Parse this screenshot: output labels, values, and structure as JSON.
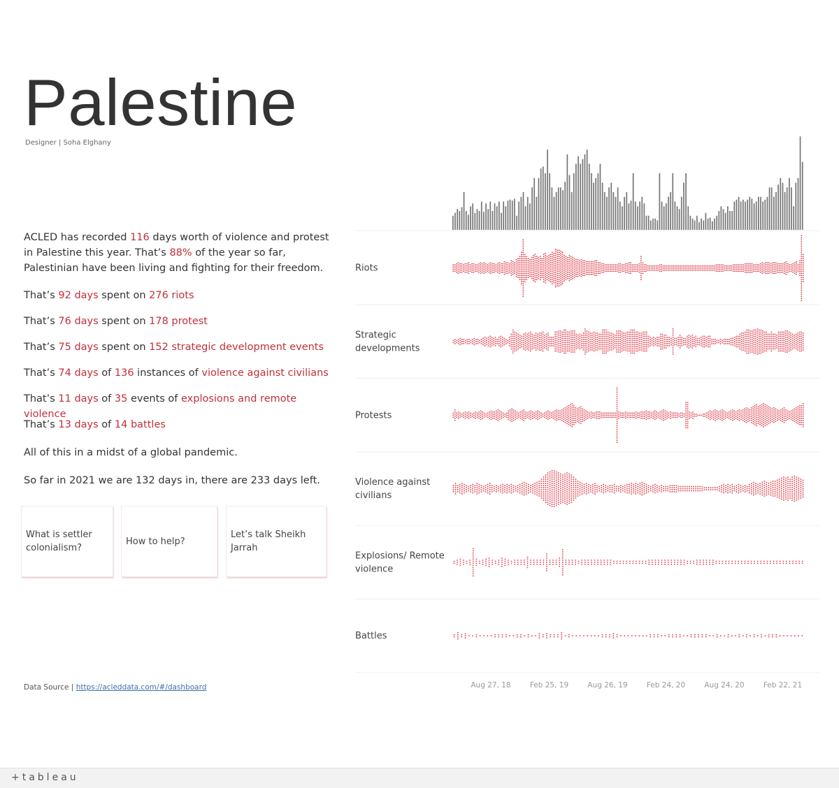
{
  "title": "Palestine",
  "designer": "Designer | Soha Elghany",
  "intro": {
    "p1": "ACLED has recorded ",
    "days_total": "116",
    "p2": " days worth of violence and protest in Palestine this year. That’s ",
    "percent": "88%",
    "p3": " of the year so far, Palestinian have been living and fighting for their freedom."
  },
  "stats": [
    {
      "a": "That’s ",
      "days": "92 days",
      "b": " spent on ",
      "count": "276 riots",
      "c": "",
      "kind": ""
    },
    {
      "a": "That’s ",
      "days": "76 days",
      "b": " spent on ",
      "count": "178 protest",
      "c": "",
      "kind": ""
    },
    {
      "a": "That’s ",
      "days": "75 days",
      "b": " spent on ",
      "count": "152 strategic development events",
      "c": "",
      "kind": ""
    },
    {
      "a": "That’s ",
      "days": "74 days",
      "b": " of ",
      "count": "136",
      "c": " instances of ",
      "kind": "violence against civilians"
    },
    {
      "a": "That’s ",
      "days": "11 days",
      "b": " of ",
      "count": "35",
      "c": " events of ",
      "kind": "explosions and remote violence"
    },
    {
      "a": "That’s ",
      "days": "13 days",
      "b": " of ",
      "count": "14 battles",
      "c": "",
      "kind": ""
    }
  ],
  "pandemic": "All of this in a midst of a global pandemic.",
  "sofar": {
    "a": "So far in 2021 we are ",
    "days_in": "132",
    "b": " days in, there are ",
    "days_left": "233",
    "c": " days left."
  },
  "cards": [
    "What is settler colonialism?",
    "How to help?",
    "Let’s talk Sheikh Jarrah"
  ],
  "source": {
    "label": "Data Source | ",
    "link": "https://acleddata.com/#/dashboard"
  },
  "brand": "+tableau",
  "colors": {
    "accent": "#c0303a",
    "dots": "#e0525e",
    "bars": "#777777"
  },
  "chart_data": {
    "type": "bar",
    "x_ticks": [
      "Aug 27, 18",
      "Feb 25, 19",
      "Aug 26, 19",
      "Feb 24, 20",
      "Aug 24, 20",
      "Feb 22, 21"
    ],
    "rows": [
      {
        "label": "Riots",
        "width": [
          4,
          4,
          5,
          6,
          5,
          5,
          4,
          5,
          5,
          6,
          4,
          5,
          5,
          4,
          4,
          5,
          6,
          5,
          6,
          5,
          4,
          5,
          6,
          5,
          5,
          4,
          5,
          6,
          5,
          5,
          7,
          6,
          6,
          5,
          8,
          7,
          6,
          9,
          10,
          12,
          16,
          28,
          14,
          12,
          10,
          9,
          11,
          13,
          14,
          12,
          11,
          12,
          10,
          14,
          15,
          12,
          13,
          14,
          16,
          15,
          19,
          18,
          18,
          17,
          16,
          13,
          12,
          11,
          13,
          12,
          11,
          10,
          9,
          9,
          8,
          9,
          8,
          8,
          7,
          7,
          7,
          7,
          7,
          8,
          8,
          6,
          6,
          5,
          5,
          4,
          4,
          4,
          4,
          4,
          4,
          4,
          4,
          5,
          5,
          4,
          4,
          5,
          5,
          6,
          6,
          4,
          4,
          4,
          4,
          5,
          12,
          6,
          4,
          4,
          3,
          3,
          3,
          3,
          3,
          3,
          3,
          4,
          4,
          3,
          3,
          3,
          3,
          3,
          3,
          3,
          3,
          3,
          3,
          3,
          3,
          3,
          3,
          3,
          3,
          3,
          3,
          3,
          3,
          3,
          3,
          3,
          3,
          3,
          3,
          3,
          3,
          3,
          3,
          3,
          4,
          4,
          4,
          4,
          4,
          3,
          3,
          3,
          3,
          3,
          4,
          4,
          4,
          4,
          4,
          4,
          4,
          5,
          5,
          5,
          5,
          5,
          4,
          4,
          4,
          4,
          5,
          6,
          5,
          6,
          6,
          6,
          5,
          6,
          6,
          6,
          5,
          5,
          5,
          5,
          6,
          7,
          5,
          4,
          4,
          5,
          6,
          7,
          4,
          8,
          32,
          14
        ]
      },
      {
        "label": "Strategic developments",
        "width": [
          2,
          3,
          2,
          3,
          4,
          3,
          3,
          2,
          3,
          3,
          2,
          3,
          4,
          3,
          3,
          2,
          3,
          4,
          5,
          4,
          5,
          6,
          5,
          4,
          5,
          3,
          5,
          6,
          5,
          4,
          3,
          2,
          5,
          8,
          12,
          10,
          9,
          8,
          7,
          6,
          8,
          9,
          8,
          9,
          10,
          8,
          7,
          9,
          8,
          9,
          9,
          10,
          7,
          8,
          9,
          5,
          5,
          5,
          10,
          10,
          11,
          11,
          10,
          12,
          12,
          10,
          10,
          11,
          11,
          11,
          8,
          7,
          8,
          7,
          9,
          13,
          11,
          10,
          9,
          9,
          10,
          9,
          9,
          8,
          8,
          12,
          12,
          12,
          10,
          9,
          9,
          8,
          7,
          11,
          11,
          11,
          10,
          9,
          9,
          10,
          10,
          12,
          12,
          12,
          10,
          10,
          9,
          9,
          10,
          10,
          10,
          6,
          5,
          4,
          5,
          4,
          5,
          5,
          8,
          8,
          7,
          7,
          5,
          5,
          4,
          13,
          4,
          4,
          5,
          7,
          5,
          4,
          4,
          6,
          7,
          6,
          7,
          5,
          6,
          4,
          4,
          5,
          6,
          6,
          5,
          6,
          6,
          3,
          3,
          3,
          2,
          2,
          3,
          2,
          3,
          3,
          3,
          3,
          4,
          4,
          5,
          6,
          6,
          8,
          9,
          9,
          10,
          12,
          12,
          11,
          11,
          12,
          12,
          13,
          12,
          12,
          11,
          10,
          10,
          8,
          8,
          10,
          8,
          8,
          7,
          10,
          10,
          10,
          10,
          11,
          11,
          10,
          9,
          8,
          7,
          8,
          9,
          10,
          10,
          9
        ]
      },
      {
        "label": "Protests",
        "width": [
          3,
          6,
          3,
          4,
          3,
          2,
          3,
          4,
          3,
          4,
          3,
          2,
          3,
          4,
          3,
          4,
          5,
          4,
          3,
          2,
          3,
          4,
          5,
          4,
          4,
          5,
          6,
          5,
          4,
          3,
          2,
          3,
          5,
          6,
          7,
          6,
          5,
          4,
          3,
          4,
          5,
          6,
          4,
          3,
          4,
          5,
          4,
          3,
          4,
          5,
          4,
          3,
          2,
          3,
          4,
          5,
          4,
          3,
          4,
          5,
          6,
          5,
          5,
          6,
          7,
          8,
          9,
          10,
          11,
          12,
          10,
          8,
          7,
          8,
          9,
          7,
          6,
          5,
          4,
          3,
          4,
          3,
          3,
          4,
          4,
          4,
          3,
          3,
          3,
          3,
          3,
          3,
          3,
          3,
          3,
          27,
          4,
          3,
          3,
          3,
          4,
          3,
          3,
          3,
          3,
          3,
          4,
          3,
          3,
          4,
          4,
          4,
          5,
          4,
          4,
          3,
          4,
          5,
          4,
          3,
          4,
          5,
          6,
          5,
          4,
          3,
          4,
          3,
          3,
          3,
          3,
          2,
          3,
          3,
          2,
          13,
          13,
          4,
          3,
          4,
          2,
          2,
          1,
          1,
          1,
          2,
          2,
          3,
          4,
          5,
          4,
          5,
          6,
          5,
          4,
          5,
          6,
          5,
          4,
          3,
          4,
          5,
          6,
          5,
          4,
          5,
          6,
          5,
          6,
          7,
          8,
          7,
          6,
          8,
          9,
          10,
          11,
          9,
          10,
          11,
          12,
          11,
          10,
          9,
          8,
          7,
          8,
          7,
          6,
          5,
          6,
          7,
          8,
          6,
          5,
          4,
          5,
          6,
          7,
          8,
          9,
          10,
          10,
          12
        ]
      },
      {
        "label": "Violence against civilians",
        "width": [
          4,
          6,
          4,
          5,
          6,
          5,
          4,
          3,
          4,
          5,
          4,
          6,
          5,
          4,
          3,
          4,
          5,
          6,
          4,
          3,
          4,
          3,
          4,
          5,
          4,
          5,
          4,
          5,
          4,
          3,
          4,
          5,
          6,
          7,
          6,
          5,
          4,
          5,
          6,
          7,
          8,
          10,
          12,
          14,
          16,
          17,
          18,
          18,
          17,
          16,
          15,
          14,
          15,
          16,
          15,
          14,
          12,
          10,
          8,
          7,
          6,
          5,
          6,
          5,
          4,
          5,
          6,
          4,
          3,
          4,
          5,
          4,
          3,
          4,
          4,
          5,
          3,
          3,
          4,
          3,
          4,
          5,
          5,
          6,
          5,
          6,
          5,
          6,
          7,
          6,
          5,
          4,
          3,
          4,
          5,
          4,
          3,
          4,
          3,
          3,
          3,
          4,
          4,
          4,
          4,
          3,
          3,
          3,
          3,
          3,
          3,
          3,
          3,
          3,
          3,
          3,
          3,
          2,
          2,
          2,
          2,
          2,
          2,
          2,
          3,
          4,
          5,
          4,
          5,
          4,
          5,
          3,
          4,
          5,
          4,
          3,
          4,
          3,
          5,
          6,
          7,
          6,
          5,
          6,
          7,
          8,
          7,
          6,
          7,
          8,
          8,
          9,
          10,
          11,
          12,
          11,
          12,
          10,
          12,
          13,
          12,
          11,
          10,
          9
        ]
      },
      {
        "label": "Explosions/ Remote violence",
        "width": [
          2,
          3,
          4,
          3,
          2,
          3,
          14,
          4,
          2,
          3,
          4,
          5,
          3,
          2,
          3,
          5,
          4,
          3,
          2,
          3,
          3,
          3,
          3,
          6,
          3,
          3,
          3,
          3,
          3,
          9,
          3,
          3,
          3,
          5,
          13,
          3,
          3,
          3,
          3,
          2,
          3,
          3,
          3,
          3,
          3,
          3,
          3,
          3,
          3,
          3,
          2,
          2,
          2,
          2,
          2,
          2,
          2,
          2,
          2,
          2,
          2,
          3,
          3,
          3,
          3,
          3,
          3,
          3,
          3,
          3,
          3,
          3,
          3,
          2,
          2,
          2,
          3,
          3,
          3,
          3,
          3,
          3,
          2,
          2,
          2,
          2,
          2,
          2,
          2,
          2,
          2,
          2,
          2,
          2,
          2,
          2,
          2,
          2,
          2,
          2,
          2,
          2,
          2,
          2,
          2,
          2,
          2,
          2,
          2,
          2
        ]
      },
      {
        "label": "Battles",
        "width": [
          2,
          4,
          2,
          3,
          1,
          1,
          2,
          1,
          1,
          1,
          1,
          2,
          2,
          2,
          2,
          1,
          1,
          2,
          2,
          1,
          2,
          1,
          1,
          3,
          2,
          3,
          2,
          2,
          2,
          4,
          1,
          2,
          1,
          1,
          1,
          1,
          1,
          1,
          1,
          1,
          2,
          2,
          2,
          3,
          2,
          1,
          1,
          1,
          1,
          1,
          1,
          1,
          1,
          2,
          2,
          2,
          1,
          1,
          2,
          2,
          2,
          2,
          1,
          1,
          2,
          2,
          2,
          2,
          2,
          1,
          1,
          2,
          1,
          1,
          2,
          1,
          1,
          2,
          1,
          2,
          1,
          2,
          1,
          2,
          1,
          2,
          2,
          2,
          1,
          1,
          1,
          1,
          1,
          1,
          1
        ]
      }
    ],
    "bars": [
      15,
      18,
      22,
      20,
      24,
      40,
      20,
      16,
      25,
      28,
      18,
      22,
      20,
      30,
      19,
      28,
      22,
      30,
      20,
      28,
      25,
      30,
      18,
      30,
      25,
      31,
      32,
      31,
      33,
      15,
      30,
      35,
      40,
      25,
      35,
      28,
      45,
      55,
      35,
      55,
      65,
      67,
      60,
      85,
      60,
      45,
      35,
      40,
      45,
      45,
      42,
      51,
      80,
      58,
      40,
      60,
      70,
      78,
      70,
      75,
      80,
      85,
      70,
      60,
      50,
      55,
      60,
      70,
      50,
      40,
      35,
      45,
      50,
      40,
      35,
      45,
      30,
      25,
      35,
      40,
      28,
      31,
      60,
      30,
      25,
      30,
      35,
      28,
      15,
      15,
      10,
      12,
      12,
      10,
      60,
      30,
      25,
      28,
      35,
      40,
      60,
      30,
      25,
      22,
      35,
      50,
      60,
      25,
      15,
      12,
      10,
      15,
      8,
      12,
      10,
      18,
      12,
      13,
      9,
      12,
      15,
      20,
      25,
      22,
      18,
      25,
      20,
      20,
      30,
      32,
      35,
      30,
      32,
      30,
      32,
      35,
      33,
      28,
      30,
      35,
      35,
      30,
      32,
      35,
      45,
      45,
      35,
      40,
      48,
      55,
      50,
      40,
      45,
      55,
      45,
      25,
      50,
      55,
      99,
      72
    ]
  }
}
